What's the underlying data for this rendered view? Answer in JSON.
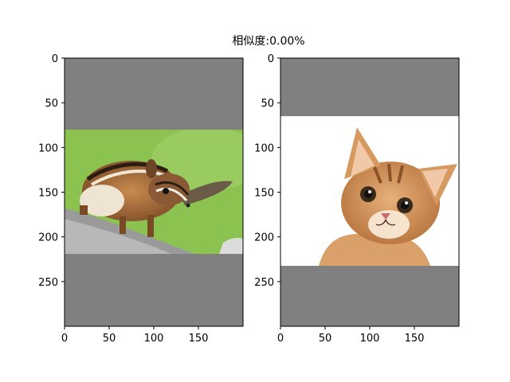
{
  "chart_data": {
    "type": "image",
    "title": "相似度:0.00%",
    "colors": {
      "padding_gray": "#808080",
      "frame": "#000000",
      "background": "#ffffff"
    },
    "panels": [
      {
        "name": "chipmunk",
        "picture": "chipmunk-photo",
        "xlim": [
          0,
          200
        ],
        "ylim": [
          300,
          0
        ],
        "xticks": [
          0,
          50,
          100,
          150
        ],
        "yticks": [
          0,
          50,
          100,
          150,
          200,
          250
        ],
        "image_rows": [
          80,
          219
        ]
      },
      {
        "name": "kitten",
        "picture": "kitten-photo",
        "xlim": [
          0,
          200
        ],
        "ylim": [
          300,
          0
        ],
        "xticks": [
          0,
          50,
          100,
          150
        ],
        "yticks": [
          0,
          50,
          100,
          150,
          200,
          250
        ],
        "image_rows": [
          64,
          231
        ]
      }
    ]
  }
}
